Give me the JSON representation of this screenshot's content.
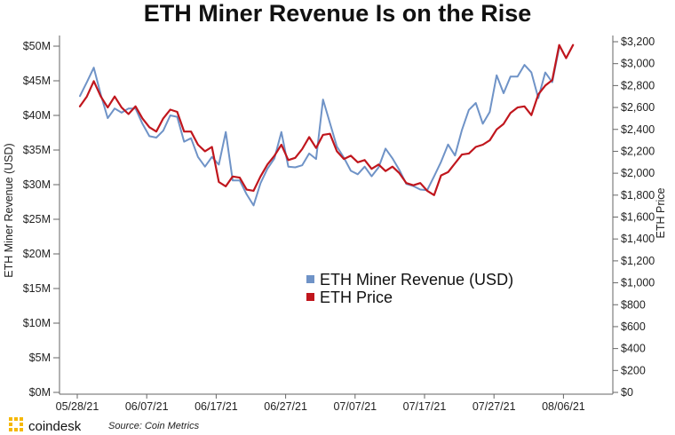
{
  "chart_data": {
    "type": "line",
    "title": "ETH Miner Revenue Is on the Rise",
    "ylabel_left": "ETH Miner Revenue (USD)",
    "ylabel_right": "ETH Price",
    "ylim_left": [
      0,
      50
    ],
    "ylim_right": [
      0,
      3200
    ],
    "left_ticks": [
      {
        "label": "$0M",
        "value": 0
      },
      {
        "label": "$5M",
        "value": 5
      },
      {
        "label": "$10M",
        "value": 10
      },
      {
        "label": "$15M",
        "value": 15
      },
      {
        "label": "$20M",
        "value": 20
      },
      {
        "label": "$25M",
        "value": 25
      },
      {
        "label": "$30M",
        "value": 30
      },
      {
        "label": "$35M",
        "value": 35
      },
      {
        "label": "$40M",
        "value": 40
      },
      {
        "label": "$45M",
        "value": 45
      },
      {
        "label": "$50M",
        "value": 50
      }
    ],
    "right_ticks": [
      {
        "label": "$0",
        "value": 0
      },
      {
        "label": "$200",
        "value": 200
      },
      {
        "label": "$400",
        "value": 400
      },
      {
        "label": "$600",
        "value": 600
      },
      {
        "label": "$800",
        "value": 800
      },
      {
        "label": "$1,000",
        "value": 1000
      },
      {
        "label": "$1,200",
        "value": 1200
      },
      {
        "label": "$1,400",
        "value": 1400
      },
      {
        "label": "$1,600",
        "value": 1600
      },
      {
        "label": "$1,800",
        "value": 1800
      },
      {
        "label": "$2,000",
        "value": 2000
      },
      {
        "label": "$2,200",
        "value": 2200
      },
      {
        "label": "$2,400",
        "value": 2400
      },
      {
        "label": "$2,600",
        "value": 2600
      },
      {
        "label": "$2,800",
        "value": 2800
      },
      {
        "label": "$3,000",
        "value": 3000
      },
      {
        "label": "$3,200",
        "value": 3200
      }
    ],
    "x_ticks": [
      "05/28/21",
      "06/07/21",
      "06/17/21",
      "06/27/21",
      "07/07/21",
      "07/17/21",
      "07/27/21",
      "08/06/21"
    ],
    "x_tick_day_index": [
      0,
      10,
      20,
      30,
      40,
      50,
      60,
      70
    ],
    "x_start": "05/28/21",
    "series": [
      {
        "name": "ETH Miner Revenue (USD)",
        "axis": "left",
        "color": "#6f93c7",
        "values": [
          42.8,
          44.8,
          46.9,
          43.0,
          39.6,
          41.0,
          40.4,
          41.0,
          41.0,
          38.8,
          37.0,
          36.8,
          37.8,
          40.0,
          39.8,
          36.2,
          36.7,
          34.0,
          32.6,
          34.0,
          32.9,
          37.6,
          30.6,
          30.6,
          28.6,
          27.0,
          30.2,
          32.3,
          33.8,
          37.6,
          32.6,
          32.5,
          32.8,
          34.5,
          33.7,
          42.3,
          38.9,
          35.5,
          33.9,
          32.0,
          31.5,
          32.6,
          31.2,
          32.5,
          35.2,
          33.8,
          32.1,
          30.1,
          29.8,
          29.3,
          29.2,
          31.2,
          33.3,
          35.8,
          34.2,
          37.9,
          40.8,
          41.8,
          38.8,
          40.5,
          45.8,
          43.2,
          45.6,
          45.6,
          47.3,
          46.2,
          42.5,
          46.2,
          44.8,
          49.8
        ]
      },
      {
        "name": "ETH Price",
        "axis": "right",
        "color": "#c0161d",
        "values": [
          2610,
          2700,
          2840,
          2700,
          2600,
          2700,
          2600,
          2540,
          2610,
          2500,
          2420,
          2380,
          2500,
          2580,
          2560,
          2380,
          2380,
          2260,
          2200,
          2240,
          1920,
          1880,
          1970,
          1960,
          1850,
          1840,
          1970,
          2080,
          2160,
          2260,
          2120,
          2140,
          2220,
          2330,
          2230,
          2350,
          2360,
          2200,
          2130,
          2160,
          2100,
          2120,
          2040,
          2080,
          2020,
          2060,
          2000,
          1910,
          1890,
          1910,
          1840,
          1800,
          1980,
          2010,
          2090,
          2170,
          2180,
          2240,
          2260,
          2300,
          2400,
          2450,
          2550,
          2600,
          2610,
          2530,
          2720,
          2800,
          2850,
          3170,
          3050,
          3170
        ]
      }
    ],
    "legend": {
      "placement": "center",
      "entries": [
        "ETH Miner Revenue (USD)",
        "ETH Price"
      ]
    },
    "grid": false
  },
  "footer": {
    "brand": "coindesk",
    "source": "Source: Coin Metrics"
  },
  "colors": {
    "brand_gold": "#f5b800"
  }
}
